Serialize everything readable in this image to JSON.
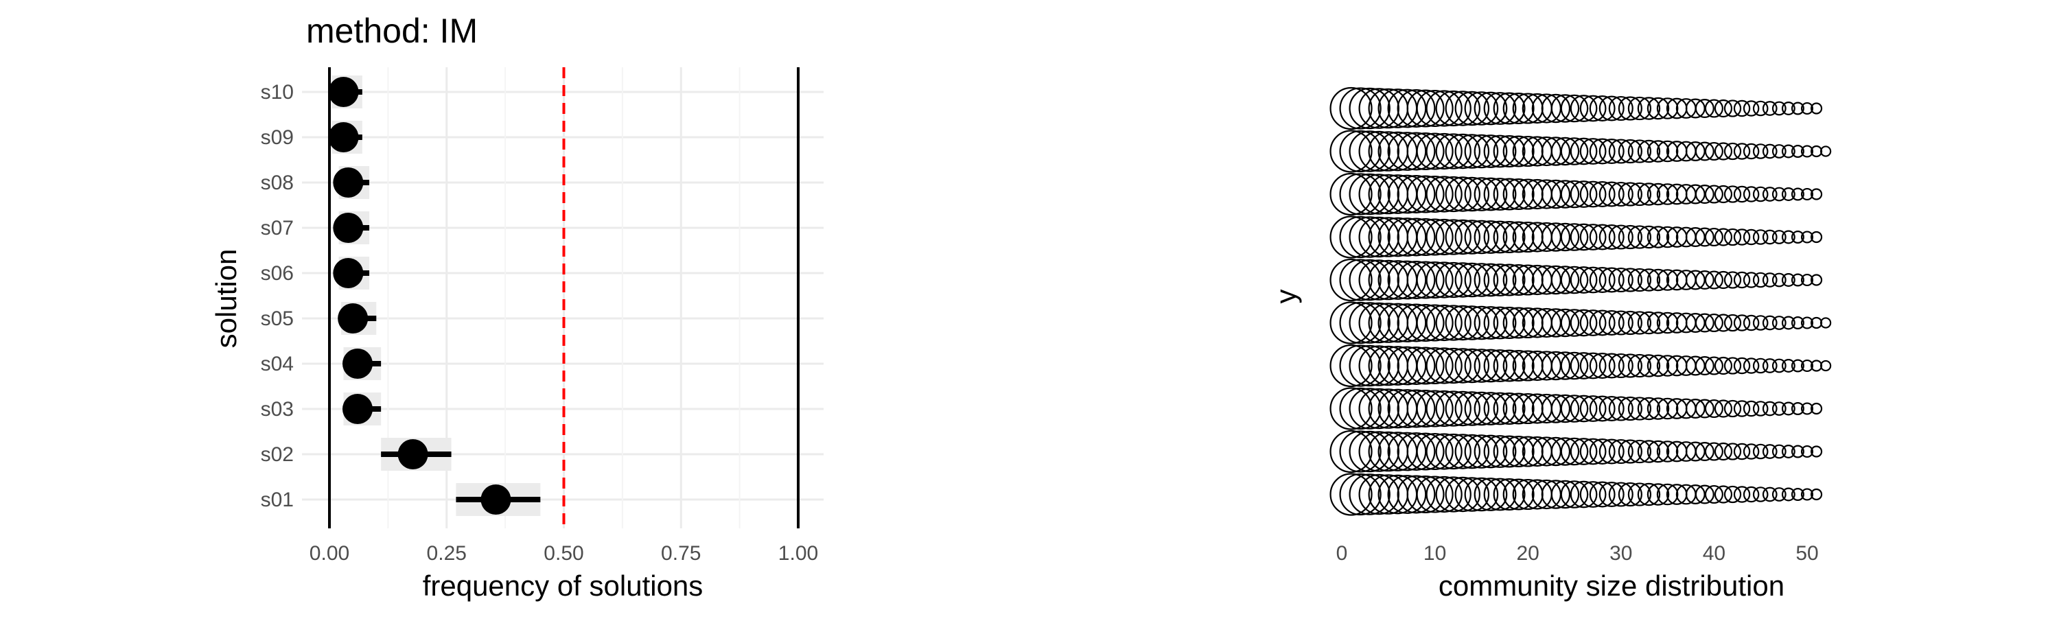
{
  "chart_data": [
    {
      "type": "scatter",
      "title": "method: IM",
      "xlabel": "frequency of solutions",
      "ylabel": "solution",
      "xlim": [
        0,
        1
      ],
      "x_ticks": [
        "0.00",
        "0.25",
        "0.50",
        "0.75",
        "1.00"
      ],
      "categories": [
        "s01",
        "s02",
        "s03",
        "s04",
        "s05",
        "s06",
        "s07",
        "s08",
        "s09",
        "s10"
      ],
      "values": [
        0.355,
        0.178,
        0.06,
        0.06,
        0.05,
        0.04,
        0.04,
        0.04,
        0.03,
        0.03
      ],
      "intervals": [
        [
          0.27,
          0.45
        ],
        [
          0.11,
          0.26
        ],
        [
          0.03,
          0.11
        ],
        [
          0.03,
          0.11
        ],
        [
          0.025,
          0.1
        ],
        [
          0.02,
          0.085
        ],
        [
          0.02,
          0.085
        ],
        [
          0.02,
          0.085
        ],
        [
          0.005,
          0.07
        ],
        [
          0.005,
          0.07
        ]
      ],
      "reference_line": 0.5,
      "reference_color": "#ff0000",
      "point_color": "#000000",
      "interval_band_color": "#ebebeb",
      "grid": true
    },
    {
      "type": "scatter",
      "title": "",
      "xlabel": "community size distribution",
      "ylabel": "y",
      "xlim": [
        -1,
        53
      ],
      "x_ticks": [
        "0",
        "10",
        "20",
        "30",
        "40",
        "50"
      ],
      "rows": 10,
      "row_max_x": [
        51,
        52,
        51,
        51,
        51,
        52,
        52,
        51,
        51,
        51
      ],
      "marker": "open-circle",
      "grid": false
    }
  ]
}
